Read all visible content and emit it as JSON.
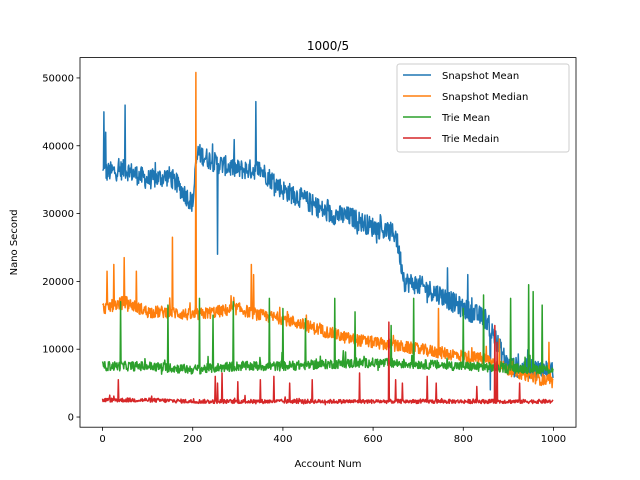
{
  "chart_data": {
    "type": "line",
    "title": "1000/5",
    "xlabel": "Account Num",
    "ylabel": "Nano Second",
    "xlim": [
      -50,
      1050
    ],
    "ylim": [
      -1500,
      53000
    ],
    "xticks": [
      0,
      200,
      400,
      600,
      800,
      1000
    ],
    "yticks": [
      0,
      10000,
      20000,
      30000,
      40000,
      50000
    ],
    "grid": false,
    "legend_position": "top-right",
    "n_points": 1000,
    "series": [
      {
        "name": "Snapshot Mean",
        "color": "#1f77b4",
        "x": [
          0,
          50,
          100,
          150,
          200,
          210,
          250,
          300,
          350,
          400,
          450,
          500,
          550,
          600,
          650,
          670,
          700,
          750,
          800,
          850,
          900,
          950,
          1000
        ],
        "y": [
          36000,
          36500,
          35000,
          35500,
          31500,
          39000,
          37500,
          36500,
          36500,
          33500,
          32000,
          30000,
          29500,
          28000,
          27000,
          20000,
          19500,
          18000,
          16000,
          14500,
          7500,
          7000,
          7000
        ],
        "noise": 1500,
        "spikes": [
          [
            3,
            45000
          ],
          [
            7,
            42000
          ],
          [
            50,
            46000
          ],
          [
            210,
            38000
          ],
          [
            340,
            46500
          ],
          [
            255,
            24000
          ],
          [
            565,
            27000
          ],
          [
            765,
            22000
          ],
          [
            810,
            21000
          ],
          [
            860,
            4000
          ]
        ]
      },
      {
        "name": "Snapshot Median",
        "color": "#ff7f0e",
        "x": [
          0,
          50,
          100,
          150,
          200,
          250,
          300,
          350,
          400,
          450,
          500,
          550,
          600,
          650,
          700,
          750,
          800,
          850,
          900,
          950,
          1000
        ],
        "y": [
          16000,
          17000,
          15500,
          15500,
          15000,
          15500,
          16000,
          15000,
          14500,
          13500,
          12500,
          11500,
          11000,
          10500,
          10000,
          9500,
          9000,
          8500,
          7000,
          6000,
          5000
        ],
        "noise": 900,
        "spikes": [
          [
            207,
            50800
          ],
          [
            155,
            26500
          ],
          [
            330,
            22500
          ],
          [
            25,
            22500
          ],
          [
            10,
            21500
          ],
          [
            48,
            23500
          ],
          [
            75,
            21500
          ],
          [
            335,
            21000
          ],
          [
            745,
            16000
          ],
          [
            990,
            11000
          ],
          [
            880,
            11500
          ]
        ]
      },
      {
        "name": "Trie Mean",
        "color": "#2ca02c",
        "x": [
          0,
          100,
          200,
          300,
          400,
          500,
          600,
          700,
          800,
          900,
          1000
        ],
        "y": [
          7500,
          7500,
          7000,
          7500,
          7500,
          7800,
          8000,
          7800,
          7500,
          7200,
          7000
        ],
        "noise": 700,
        "spikes": [
          [
            40,
            17000
          ],
          [
            145,
            16500
          ],
          [
            215,
            17500
          ],
          [
            245,
            15000
          ],
          [
            290,
            17000
          ],
          [
            370,
            17500
          ],
          [
            400,
            16000
          ],
          [
            450,
            14500
          ],
          [
            515,
            17500
          ],
          [
            560,
            15500
          ],
          [
            640,
            13500
          ],
          [
            690,
            17500
          ],
          [
            800,
            16000
          ],
          [
            845,
            18000
          ],
          [
            905,
            17500
          ],
          [
            945,
            19500
          ],
          [
            955,
            18500
          ],
          [
            975,
            16500
          ]
        ]
      },
      {
        "name": "Trie Medain",
        "color": "#d62728",
        "x": [
          0,
          100,
          200,
          300,
          400,
          500,
          600,
          700,
          800,
          900,
          1000
        ],
        "y": [
          2500,
          2500,
          2300,
          2300,
          2300,
          2300,
          2300,
          2300,
          2300,
          2300,
          2300
        ],
        "noise": 300,
        "spikes": [
          [
            35,
            5500
          ],
          [
            250,
            6000
          ],
          [
            255,
            5000
          ],
          [
            265,
            6500
          ],
          [
            300,
            5200
          ],
          [
            350,
            5500
          ],
          [
            380,
            6000
          ],
          [
            415,
            5000
          ],
          [
            465,
            5500
          ],
          [
            570,
            6500
          ],
          [
            635,
            14000
          ],
          [
            650,
            5500
          ],
          [
            665,
            5000
          ],
          [
            720,
            6000
          ],
          [
            740,
            5000
          ],
          [
            830,
            4500
          ],
          [
            870,
            13500
          ],
          [
            875,
            11000
          ],
          [
            925,
            5000
          ]
        ]
      }
    ]
  }
}
